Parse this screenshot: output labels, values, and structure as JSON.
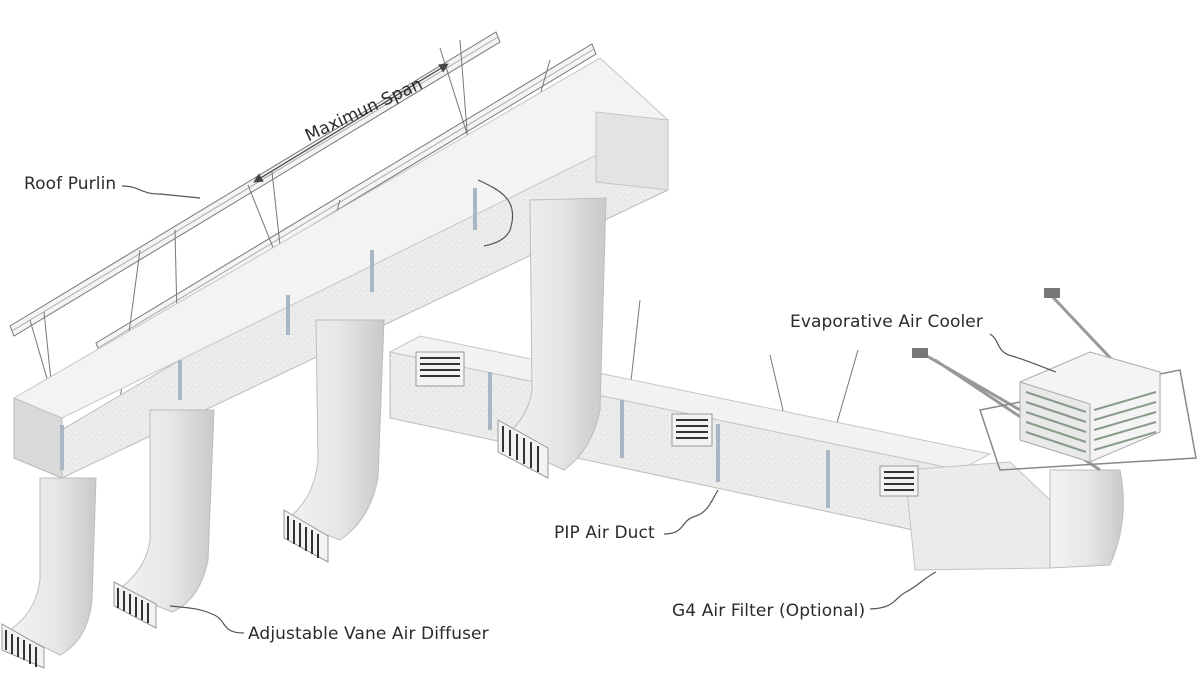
{
  "labels": {
    "roof_purlin": "Roof Purlin",
    "maximum_span": "Maximun Span",
    "evaporative_cooler": "Evaporative Air Cooler",
    "pip_duct": "PIP Air Duct",
    "g4_filter": "G4 Air Filter (Optional)",
    "diffuser": "Adjustable Vane Air Diffuser"
  },
  "colors": {
    "duct_top": "#f2f2f2",
    "duct_face": "#e4e4e4",
    "duct_side": "#cfcfcf",
    "clamp": "#a9b6c4",
    "line": "#555555"
  }
}
